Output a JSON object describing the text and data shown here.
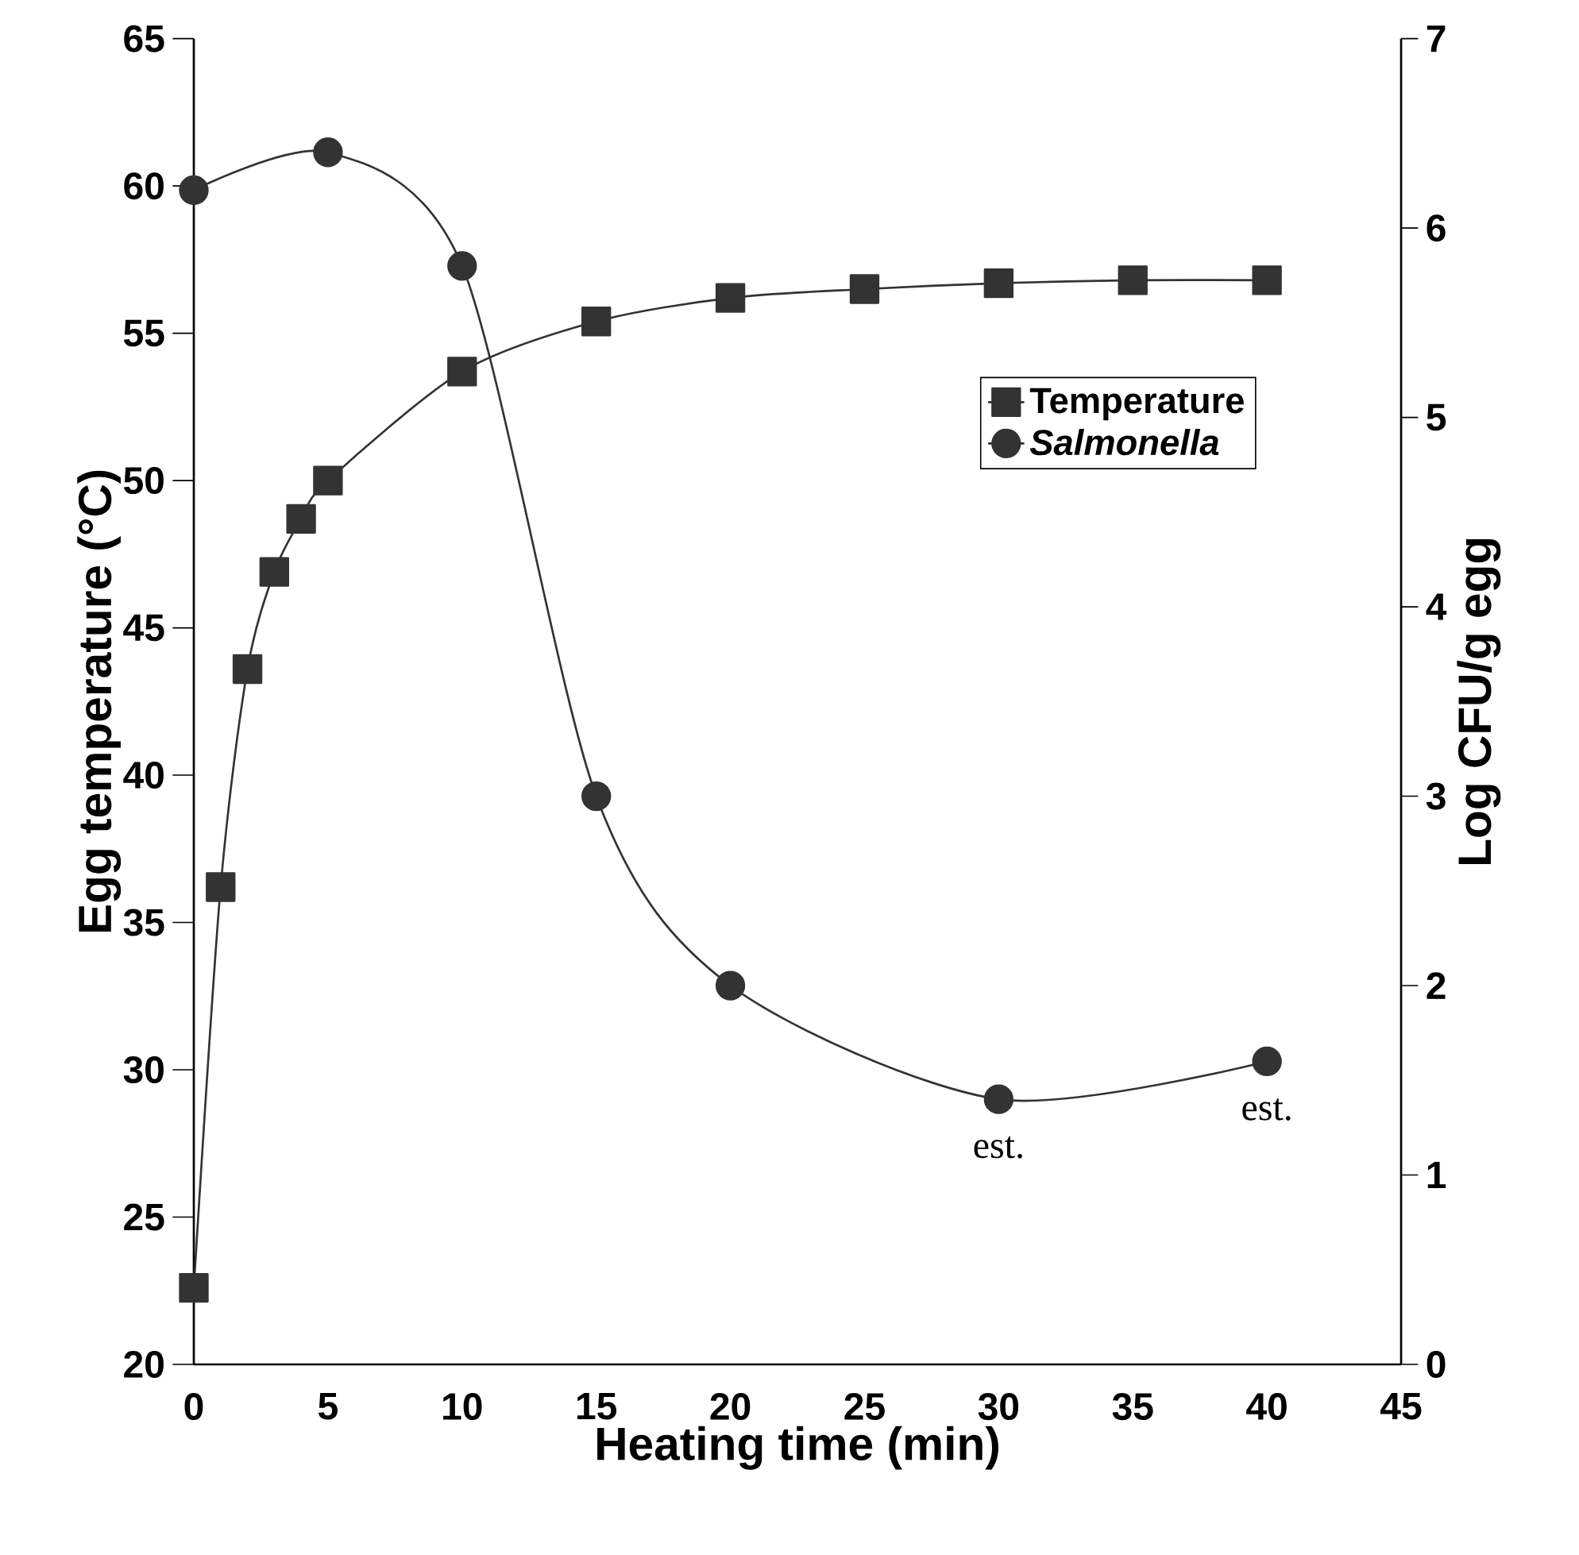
{
  "chart_data": {
    "type": "line",
    "xlabel": "Heating time (min)",
    "ylabel": "Egg temperature (°C)",
    "y2label": "Log CFU/g egg",
    "xlim": [
      0,
      45
    ],
    "xticks": [
      0,
      5,
      10,
      15,
      20,
      25,
      30,
      35,
      40,
      45
    ],
    "ylim": [
      20,
      65
    ],
    "yticks": [
      20,
      25,
      30,
      35,
      40,
      45,
      50,
      55,
      60,
      65
    ],
    "y2lim": [
      0,
      7
    ],
    "y2ticks": [
      0,
      1,
      2,
      3,
      4,
      5,
      6,
      7
    ],
    "legend": "right",
    "series": [
      {
        "name": "Temperature",
        "color": "#333333",
        "marker": "square",
        "x": [
          0,
          1,
          2,
          3,
          4,
          5,
          10,
          15,
          20,
          25,
          30,
          35,
          40
        ],
        "values": [
          22.6,
          36.2,
          43.6,
          46.9,
          48.7,
          50.0,
          53.7,
          55.4,
          56.2,
          56.5,
          56.7,
          56.8,
          56.8
        ]
      },
      {
        "name": "*Salmonella*",
        "color": "#333333",
        "marker": "circle",
        "axis": "y2",
        "x": [
          0,
          5,
          10,
          15,
          20,
          30,
          40
        ],
        "values": [
          6.2,
          6.4,
          5.8,
          3.0,
          2.0,
          1.4,
          1.6
        ]
      }
    ],
    "annotations": [
      "est.",
      "est."
    ]
  }
}
